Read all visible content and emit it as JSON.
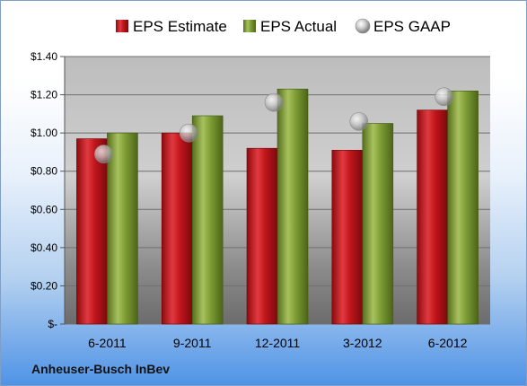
{
  "company": "Anheuser-Busch InBev",
  "chart_data": {
    "type": "bar",
    "categories": [
      "6-2011",
      "9-2011",
      "12-2011",
      "3-2012",
      "6-2012"
    ],
    "series": [
      {
        "name": "EPS Estimate",
        "kind": "bar",
        "color": "#c0151b",
        "values": [
          0.97,
          1.0,
          0.92,
          0.91,
          1.12
        ]
      },
      {
        "name": "EPS Actual",
        "kind": "bar",
        "color": "#7d9c34",
        "values": [
          1.0,
          1.09,
          1.23,
          1.05,
          1.22
        ]
      },
      {
        "name": "EPS GAAP",
        "kind": "marker",
        "color": "#a8a8a8",
        "values": [
          0.89,
          1.0,
          1.16,
          1.06,
          1.19
        ]
      }
    ],
    "y_ticks": [
      {
        "value": 0,
        "label": "$-"
      },
      {
        "value": 0.2,
        "label": "$0.20"
      },
      {
        "value": 0.4,
        "label": "$0.40"
      },
      {
        "value": 0.6,
        "label": "$0.60"
      },
      {
        "value": 0.8,
        "label": "$0.80"
      },
      {
        "value": 1.0,
        "label": "$1.00"
      },
      {
        "value": 1.2,
        "label": "$1.20"
      },
      {
        "value": 1.4,
        "label": "$1.40"
      }
    ],
    "ylim": [
      0,
      1.4
    ],
    "grid": true,
    "legend_position": "top"
  }
}
